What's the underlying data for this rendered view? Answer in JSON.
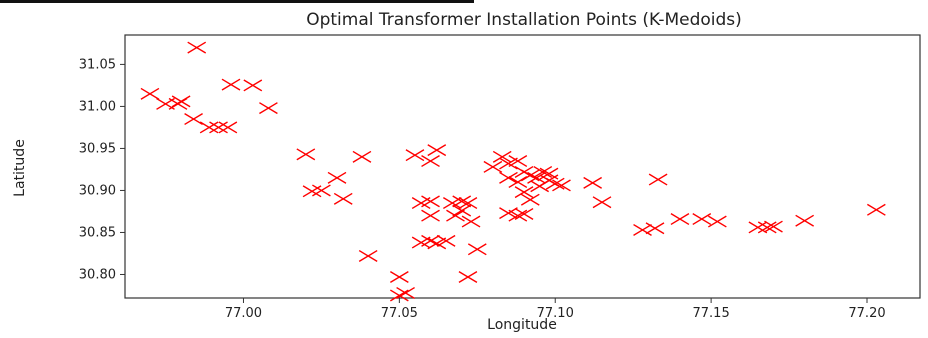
{
  "chart_data": {
    "type": "scatter",
    "title": "Optimal Transformer Installation Points (K-Medoids)",
    "xlabel": "Longitude",
    "ylabel": "Latitude",
    "xlim": [
      76.962,
      77.217
    ],
    "ylim": [
      30.772,
      31.085
    ],
    "xticks": [
      77.0,
      77.05,
      77.1,
      77.15,
      77.2
    ],
    "yticks": [
      30.8,
      30.85,
      30.9,
      30.95,
      31.0,
      31.05
    ],
    "xtick_labels": [
      "77.00",
      "77.05",
      "77.10",
      "77.15",
      "77.20"
    ],
    "ytick_labels": [
      "30.80",
      "30.85",
      "30.90",
      "30.95",
      "31.00",
      "31.05"
    ],
    "grid": false,
    "marker": "x",
    "marker_color": "#ff0000",
    "points": [
      [
        76.985,
        31.07
      ],
      [
        76.97,
        31.015
      ],
      [
        76.975,
        31.003
      ],
      [
        76.979,
        31.003
      ],
      [
        76.98,
        31.006
      ],
      [
        76.984,
        30.985
      ],
      [
        76.989,
        30.975
      ],
      [
        76.992,
        30.975
      ],
      [
        76.995,
        30.975
      ],
      [
        76.996,
        31.026
      ],
      [
        77.003,
        31.025
      ],
      [
        77.008,
        30.998
      ],
      [
        77.02,
        30.943
      ],
      [
        77.022,
        30.899
      ],
      [
        77.025,
        30.9
      ],
      [
        77.03,
        30.915
      ],
      [
        77.032,
        30.89
      ],
      [
        77.038,
        30.94
      ],
      [
        77.04,
        30.822
      ],
      [
        77.05,
        30.797
      ],
      [
        77.05,
        30.775
      ],
      [
        77.052,
        30.778
      ],
      [
        77.055,
        30.942
      ],
      [
        77.06,
        30.935
      ],
      [
        77.062,
        30.948
      ],
      [
        77.057,
        30.885
      ],
      [
        77.06,
        30.887
      ],
      [
        77.06,
        30.87
      ],
      [
        77.057,
        30.838
      ],
      [
        77.06,
        30.84
      ],
      [
        77.062,
        30.837
      ],
      [
        77.065,
        30.84
      ],
      [
        77.067,
        30.885
      ],
      [
        77.07,
        30.887
      ],
      [
        77.072,
        30.885
      ],
      [
        77.068,
        30.87
      ],
      [
        77.07,
        30.876
      ],
      [
        77.073,
        30.863
      ],
      [
        77.072,
        30.797
      ],
      [
        77.075,
        30.83
      ],
      [
        77.08,
        30.928
      ],
      [
        77.083,
        30.94
      ],
      [
        77.085,
        30.932
      ],
      [
        77.088,
        30.935
      ],
      [
        77.085,
        30.915
      ],
      [
        77.088,
        30.91
      ],
      [
        77.09,
        30.922
      ],
      [
        77.092,
        30.918
      ],
      [
        77.094,
        30.915
      ],
      [
        77.095,
        30.905
      ],
      [
        77.098,
        30.912
      ],
      [
        77.1,
        30.908
      ],
      [
        77.102,
        30.906
      ],
      [
        77.096,
        30.922
      ],
      [
        77.098,
        30.92
      ],
      [
        77.09,
        30.898
      ],
      [
        77.085,
        30.873
      ],
      [
        77.088,
        30.87
      ],
      [
        77.09,
        30.872
      ],
      [
        77.092,
        30.889
      ],
      [
        77.112,
        30.909
      ],
      [
        77.115,
        30.886
      ],
      [
        77.133,
        30.913
      ],
      [
        77.128,
        30.853
      ],
      [
        77.132,
        30.855
      ],
      [
        77.14,
        30.866
      ],
      [
        77.147,
        30.866
      ],
      [
        77.152,
        30.863
      ],
      [
        77.165,
        30.856
      ],
      [
        77.168,
        30.856
      ],
      [
        77.17,
        30.857
      ],
      [
        77.18,
        30.864
      ],
      [
        77.203,
        30.877
      ]
    ]
  }
}
